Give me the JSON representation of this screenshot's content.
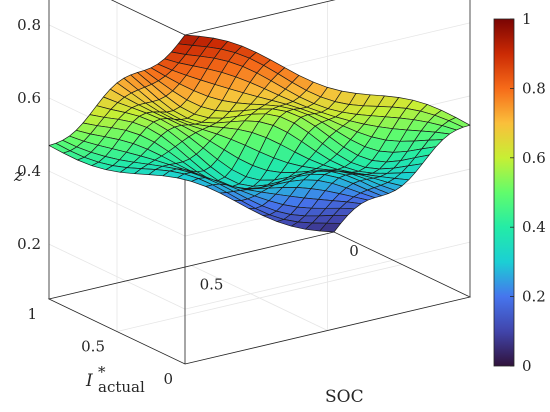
{
  "chart_data": {
    "type": "surface",
    "title": "",
    "xlabel": "SOC",
    "ylabel_main": "I",
    "ylabel_sup": "*",
    "ylabel_sub": "actual",
    "zlabel": "z",
    "x_ticks": [
      "0",
      "0.5"
    ],
    "y_ticks": [
      "0",
      "0.5",
      "1"
    ],
    "z_ticks": [
      "0.2",
      "0.4",
      "0.6",
      "0.8"
    ],
    "colorbar_ticks": [
      "0",
      "0.2",
      "0.4",
      "0.6",
      "0.8",
      "1"
    ],
    "zlim": [
      0.05,
      0.95
    ],
    "clim": [
      0,
      1
    ],
    "colormap": "turbo",
    "grid": true,
    "corner_values": {
      "soc0_i0": 0.95,
      "soc1_i0": 0.52,
      "soc0_i1": 0.47,
      "soc1_i1": 0.05,
      "center": 0.45
    }
  }
}
